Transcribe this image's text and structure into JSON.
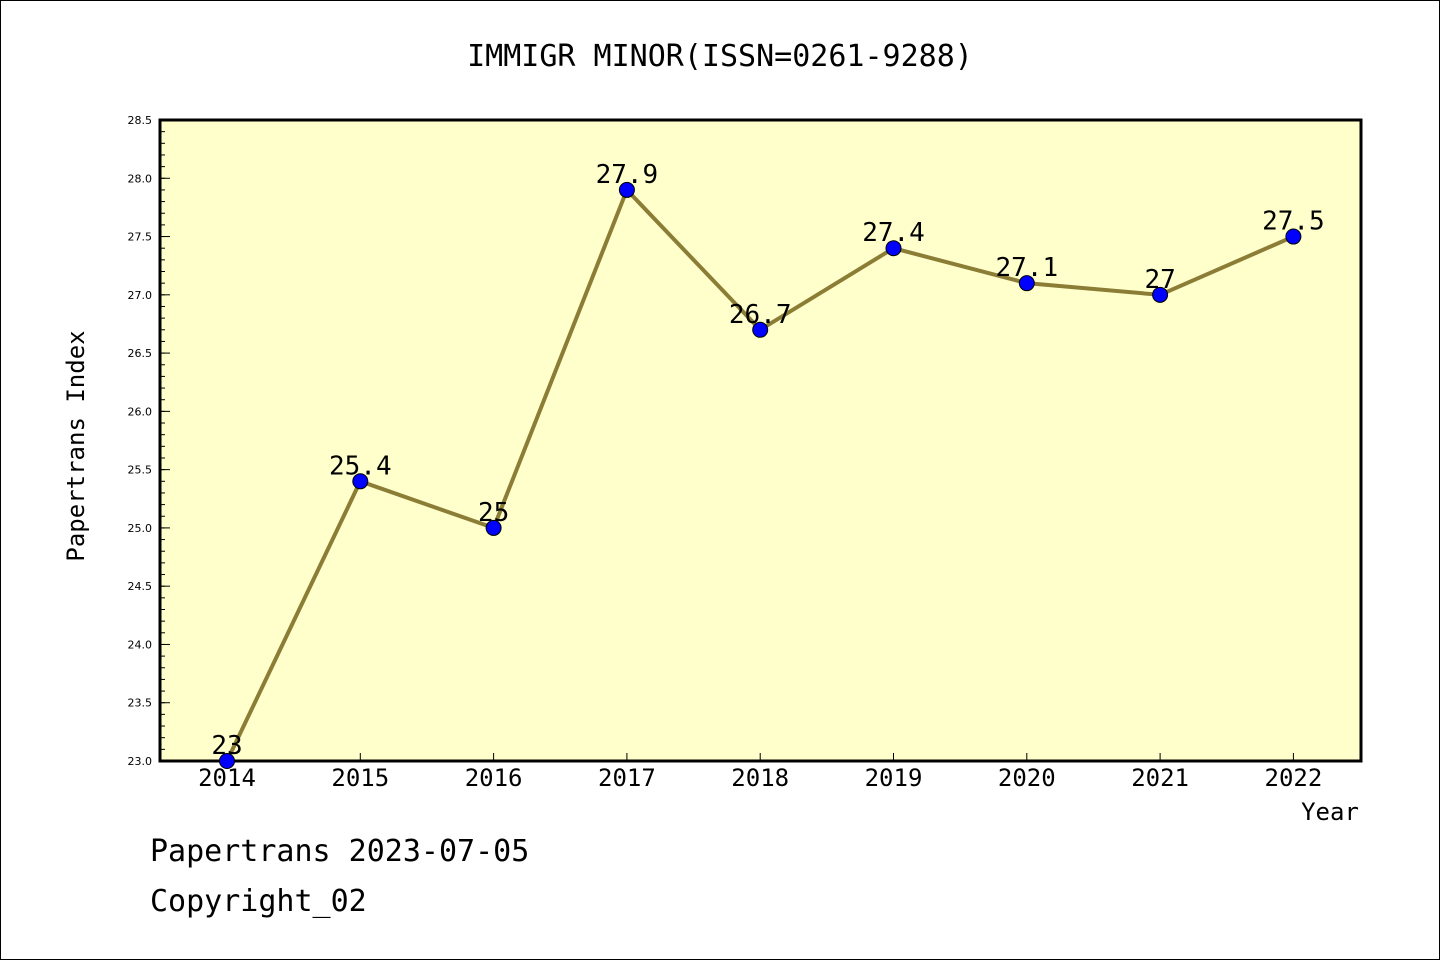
{
  "chart_data": {
    "type": "line",
    "title": "IMMIGR MINOR(ISSN=0261-9288)",
    "xlabel": "Year",
    "ylabel": "Papertrans Index",
    "categories": [
      "2014",
      "2015",
      "2016",
      "2017",
      "2018",
      "2019",
      "2020",
      "2021",
      "2022"
    ],
    "series": [
      {
        "values": [
          23,
          25.4,
          25,
          27.9,
          26.7,
          27.4,
          27.1,
          27,
          27.5
        ],
        "data_labels": [
          "23",
          "25.4",
          "25",
          "27.9",
          "26.7",
          "27.4",
          "27.1",
          "27",
          "27.5"
        ]
      }
    ],
    "ylim": [
      23.0,
      28.5
    ],
    "yticks": [
      "23.0",
      "23.5",
      "24.0",
      "24.5",
      "25.0",
      "25.5",
      "26.0",
      "26.5",
      "27.0",
      "27.5",
      "28.0",
      "28.5"
    ],
    "grid": false,
    "colors": {
      "plot_background": "#ffffcc",
      "line": "#8b7d35",
      "marker": "#0000ff"
    }
  },
  "footer": {
    "line1": "Papertrans 2023-07-05",
    "line2": "Copyright_02"
  }
}
